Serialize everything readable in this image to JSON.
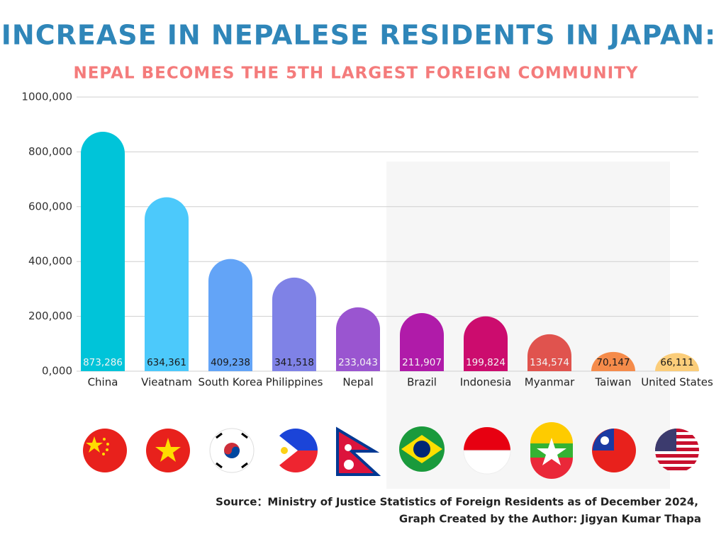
{
  "chart_data": {
    "type": "bar",
    "title": "INCREASE IN NEPALESE RESIDENTS IN JAPAN:",
    "subtitle": "NEPAL BECOMES THE 5TH LARGEST FOREIGN COMMUNITY",
    "categories": [
      "China",
      "Vieatnam",
      "South Korea",
      "Philippines",
      "Nepal",
      "Brazil",
      "Indonesia",
      "Myanmar",
      "Taiwan",
      "United States"
    ],
    "values": [
      873286,
      634361,
      409238,
      341518,
      233043,
      211907,
      199824,
      134574,
      70147,
      66111
    ],
    "value_labels": [
      "873,286",
      "634,361",
      "409,238",
      "341,518",
      "233,043",
      "211,907",
      "199,824",
      "134,574",
      "70,147",
      "66,111"
    ],
    "colors": [
      "#00c4d9",
      "#4cc9fb",
      "#63a4f7",
      "#7f82e6",
      "#9a55d0",
      "#b01ba9",
      "#cc0c6e",
      "#e0534e",
      "#f58b4a",
      "#fbcd7a"
    ],
    "ylim": [
      0,
      1000000
    ],
    "yticks": [
      {
        "value": 0,
        "label": "0,000"
      },
      {
        "value": 200000,
        "label": "200,000"
      },
      {
        "value": 400000,
        "label": "400,000"
      },
      {
        "value": 600000,
        "label": "600,000"
      },
      {
        "value": 800000,
        "label": "800,000"
      },
      {
        "value": 1000000,
        "label": "1000,000"
      }
    ],
    "grid": true,
    "source": [
      "Source：Ministry of Justice Statistics of Foreign Residents as of December 2024,",
      "Graph Created by the Author: Jigyan Kumar Thapa"
    ]
  }
}
